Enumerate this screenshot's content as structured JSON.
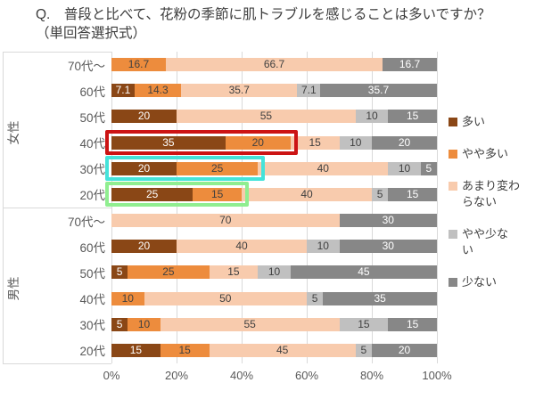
{
  "title": {
    "line1": "Q.　普段と比べて、花粉の季節に肌トラブルを感じることは多いですか？",
    "line2": "（単回答選択式）"
  },
  "chart_data": {
    "type": "bar",
    "orientation": "horizontal",
    "stacked": true,
    "grid": true,
    "legend_position": "right",
    "xlim": [
      0,
      100
    ],
    "x_ticks": [
      "0%",
      "20%",
      "40%",
      "60%",
      "80%",
      "100%"
    ],
    "group_labels": [
      "女性",
      "男性"
    ],
    "categories": [
      "70代～",
      "60代",
      "50代",
      "40代",
      "30代",
      "20代",
      "70代～",
      "60代",
      "50代",
      "40代",
      "30代",
      "20代"
    ],
    "series": [
      {
        "name": "多い",
        "legend_lines": [
          "多い"
        ],
        "color": "#8a4716",
        "label_color": "#ffffff",
        "values": [
          0,
          7.1,
          20,
          35,
          20,
          25,
          0,
          20,
          5,
          0,
          5,
          15
        ]
      },
      {
        "name": "やや多い",
        "legend_lines": [
          "やや多い"
        ],
        "color": "#ed8c3d",
        "label_color": "#404040",
        "values": [
          16.7,
          14.3,
          0,
          20,
          25,
          15,
          0,
          0,
          25,
          10,
          10,
          15
        ]
      },
      {
        "name": "あまり変わらない",
        "legend_lines": [
          "あまり変わ",
          "らない"
        ],
        "color": "#f8cbad",
        "label_color": "#404040",
        "values": [
          66.7,
          35.7,
          55,
          15,
          40,
          40,
          70,
          40,
          15,
          50,
          55,
          45
        ]
      },
      {
        "name": "やや少ない",
        "legend_lines": [
          "やや少な",
          "い"
        ],
        "color": "#c0c0c0",
        "label_color": "#404040",
        "values": [
          0,
          7.1,
          10,
          10,
          10,
          5,
          0,
          10,
          10,
          5,
          15,
          5
        ]
      },
      {
        "name": "少ない",
        "legend_lines": [
          "少ない"
        ],
        "color": "#878787",
        "label_color": "#ffffff",
        "values": [
          16.7,
          35.7,
          15,
          20,
          5,
          15,
          30,
          30,
          45,
          35,
          15,
          20
        ]
      }
    ],
    "highlights": [
      {
        "name": "highlight-female-40s",
        "row": 3,
        "span_pct": 55,
        "color": "#cc1414"
      },
      {
        "name": "highlight-female-30s",
        "row": 4,
        "span_pct": 45,
        "color": "#45e3da"
      },
      {
        "name": "highlight-female-20s",
        "row": 5,
        "span_pct": 40,
        "color": "#90ee90"
      }
    ],
    "colors": {
      "gridline": "#d9d9d9",
      "axis_text": "#595959",
      "title_text": "#3d3d3d"
    }
  }
}
